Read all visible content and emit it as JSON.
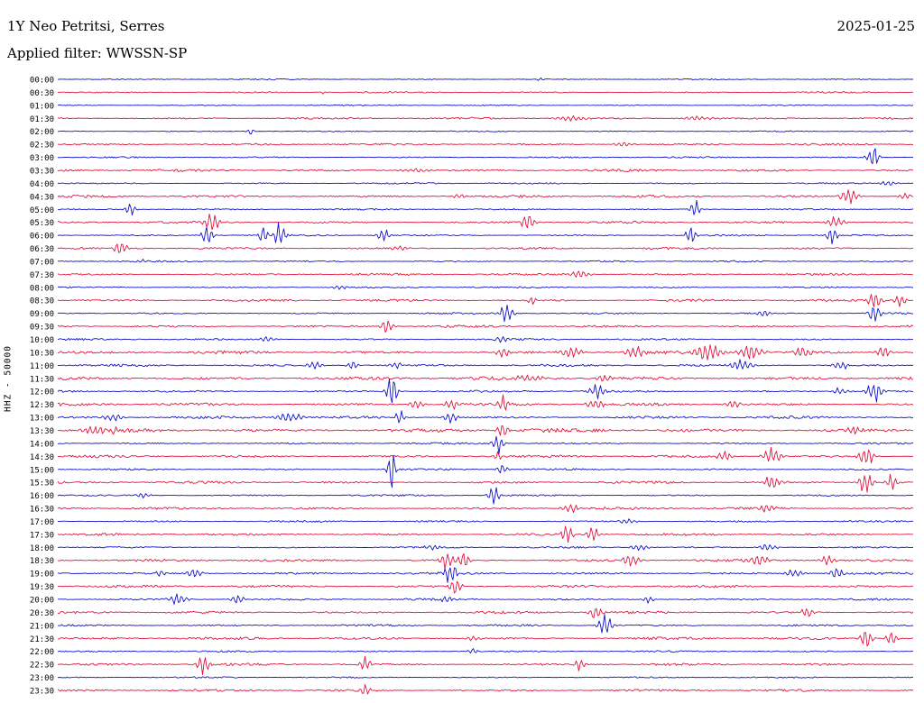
{
  "header": {
    "station": "1Y Neo Petritsi, Serres",
    "date": "2025-01-25",
    "filter": "Applied filter: WWSSN-SP"
  },
  "axis": {
    "left_label": "HHZ - 50000"
  },
  "chart_data": {
    "type": "line",
    "subtype": "seismogram-helicorder",
    "title": "1Y Neo Petritsi, Serres",
    "date": "2025-01-25",
    "filter": "WWSSN-SP",
    "channel": "HHZ",
    "scale": 50000,
    "row_interval_minutes": 30,
    "xlabel": "",
    "ylabel": "HHZ - 50000",
    "grid": false,
    "legend": false,
    "colors": {
      "even": "#1212cc",
      "odd": "#e01440"
    },
    "rows": [
      {
        "t": "00:00",
        "noise": 0.7,
        "events": [
          {
            "x": 0.565,
            "a": 3,
            "w": 0.004
          }
        ]
      },
      {
        "t": "00:30",
        "noise": 1.0,
        "events": [
          {
            "x": 0.31,
            "a": 2,
            "w": 0.003
          }
        ]
      },
      {
        "t": "01:00",
        "noise": 0.7,
        "events": []
      },
      {
        "t": "01:30",
        "noise": 1.2,
        "events": [
          {
            "x": 0.6,
            "a": 2.5,
            "w": 0.02
          },
          {
            "x": 0.75,
            "a": 2.5,
            "w": 0.02
          }
        ]
      },
      {
        "t": "02:00",
        "noise": 0.8,
        "events": [
          {
            "x": 0.225,
            "a": 4,
            "w": 0.004
          }
        ]
      },
      {
        "t": "02:30",
        "noise": 1.2,
        "events": [
          {
            "x": 0.66,
            "a": 2.5,
            "w": 0.01
          }
        ]
      },
      {
        "t": "03:00",
        "noise": 0.9,
        "events": [
          {
            "x": 0.953,
            "a": 16,
            "w": 0.006
          }
        ]
      },
      {
        "t": "03:30",
        "noise": 1.5,
        "events": [
          {
            "x": 0.42,
            "a": 2,
            "w": 0.02
          }
        ]
      },
      {
        "t": "04:00",
        "noise": 1.0,
        "events": [
          {
            "x": 0.97,
            "a": 3,
            "w": 0.01
          }
        ]
      },
      {
        "t": "04:30",
        "noise": 1.6,
        "events": [
          {
            "x": 0.47,
            "a": 3,
            "w": 0.008
          },
          {
            "x": 0.925,
            "a": 8,
            "w": 0.01
          },
          {
            "x": 0.99,
            "a": 5,
            "w": 0.006
          }
        ]
      },
      {
        "t": "05:00",
        "noise": 1.0,
        "events": [
          {
            "x": 0.085,
            "a": 6,
            "w": 0.006
          },
          {
            "x": 0.745,
            "a": 10,
            "w": 0.005
          }
        ]
      },
      {
        "t": "05:30",
        "noise": 1.4,
        "events": [
          {
            "x": 0.18,
            "a": 10,
            "w": 0.008
          },
          {
            "x": 0.55,
            "a": 9,
            "w": 0.008
          },
          {
            "x": 0.91,
            "a": 6,
            "w": 0.01
          }
        ]
      },
      {
        "t": "06:00",
        "noise": 1.0,
        "events": [
          {
            "x": 0.175,
            "a": 12,
            "w": 0.006
          },
          {
            "x": 0.24,
            "a": 10,
            "w": 0.005
          },
          {
            "x": 0.26,
            "a": 14,
            "w": 0.006
          },
          {
            "x": 0.38,
            "a": 9,
            "w": 0.006
          },
          {
            "x": 0.74,
            "a": 12,
            "w": 0.005
          },
          {
            "x": 0.905,
            "a": 10,
            "w": 0.006
          }
        ]
      },
      {
        "t": "06:30",
        "noise": 1.4,
        "events": [
          {
            "x": 0.073,
            "a": 10,
            "w": 0.007
          },
          {
            "x": 0.4,
            "a": 2.5,
            "w": 0.01
          }
        ]
      },
      {
        "t": "07:00",
        "noise": 1.0,
        "events": [
          {
            "x": 0.1,
            "a": 2,
            "w": 0.01
          }
        ]
      },
      {
        "t": "07:30",
        "noise": 1.4,
        "events": [
          {
            "x": 0.61,
            "a": 4,
            "w": 0.012
          }
        ]
      },
      {
        "t": "08:00",
        "noise": 1.0,
        "events": [
          {
            "x": 0.33,
            "a": 2,
            "w": 0.01
          }
        ]
      },
      {
        "t": "08:30",
        "noise": 1.4,
        "events": [
          {
            "x": 0.555,
            "a": 5,
            "w": 0.005
          },
          {
            "x": 0.955,
            "a": 10,
            "w": 0.008
          },
          {
            "x": 0.985,
            "a": 8,
            "w": 0.006
          }
        ]
      },
      {
        "t": "09:00",
        "noise": 1.1,
        "events": [
          {
            "x": 0.525,
            "a": 13,
            "w": 0.007
          },
          {
            "x": 0.825,
            "a": 3,
            "w": 0.01
          },
          {
            "x": 0.955,
            "a": 12,
            "w": 0.006
          }
        ]
      },
      {
        "t": "09:30",
        "noise": 1.5,
        "events": [
          {
            "x": 0.385,
            "a": 9,
            "w": 0.006
          }
        ]
      },
      {
        "t": "10:00",
        "noise": 1.2,
        "events": [
          {
            "x": 0.245,
            "a": 3,
            "w": 0.01
          },
          {
            "x": 0.52,
            "a": 4,
            "w": 0.008
          }
        ]
      },
      {
        "t": "10:30",
        "noise": 1.8,
        "events": [
          {
            "x": 0.52,
            "a": 5,
            "w": 0.01
          },
          {
            "x": 0.6,
            "a": 6,
            "w": 0.012
          },
          {
            "x": 0.675,
            "a": 7,
            "w": 0.01
          },
          {
            "x": 0.76,
            "a": 10,
            "w": 0.015
          },
          {
            "x": 0.81,
            "a": 9,
            "w": 0.012
          },
          {
            "x": 0.87,
            "a": 6,
            "w": 0.01
          },
          {
            "x": 0.965,
            "a": 7,
            "w": 0.008
          }
        ]
      },
      {
        "t": "11:00",
        "noise": 1.4,
        "events": [
          {
            "x": 0.3,
            "a": 5,
            "w": 0.008
          },
          {
            "x": 0.345,
            "a": 4,
            "w": 0.006
          },
          {
            "x": 0.395,
            "a": 4,
            "w": 0.006
          },
          {
            "x": 0.8,
            "a": 7,
            "w": 0.012
          },
          {
            "x": 0.915,
            "a": 6,
            "w": 0.008
          }
        ]
      },
      {
        "t": "11:30",
        "noise": 2.2,
        "events": [
          {
            "x": 0.55,
            "a": 3,
            "w": 0.02
          },
          {
            "x": 0.64,
            "a": 4,
            "w": 0.01
          }
        ]
      },
      {
        "t": "12:00",
        "noise": 1.3,
        "events": [
          {
            "x": 0.39,
            "a": 22,
            "w": 0.006
          },
          {
            "x": 0.63,
            "a": 8,
            "w": 0.008
          },
          {
            "x": 0.915,
            "a": 4,
            "w": 0.01
          },
          {
            "x": 0.955,
            "a": 14,
            "w": 0.009
          }
        ]
      },
      {
        "t": "12:30",
        "noise": 1.8,
        "events": [
          {
            "x": 0.42,
            "a": 6,
            "w": 0.008
          },
          {
            "x": 0.46,
            "a": 7,
            "w": 0.008
          },
          {
            "x": 0.52,
            "a": 10,
            "w": 0.006
          },
          {
            "x": 0.63,
            "a": 5,
            "w": 0.01
          },
          {
            "x": 0.79,
            "a": 4,
            "w": 0.01
          }
        ]
      },
      {
        "t": "13:00",
        "noise": 1.6,
        "events": [
          {
            "x": 0.065,
            "a": 4,
            "w": 0.01
          },
          {
            "x": 0.27,
            "a": 6,
            "w": 0.015
          },
          {
            "x": 0.4,
            "a": 8,
            "w": 0.006
          },
          {
            "x": 0.46,
            "a": 6,
            "w": 0.008
          }
        ]
      },
      {
        "t": "13:30",
        "noise": 2.5,
        "events": [
          {
            "x": 0.05,
            "a": 4,
            "w": 0.02
          },
          {
            "x": 0.52,
            "a": 8,
            "w": 0.006
          },
          {
            "x": 0.93,
            "a": 4,
            "w": 0.01
          }
        ]
      },
      {
        "t": "14:00",
        "noise": 1.2,
        "events": [
          {
            "x": 0.515,
            "a": 12,
            "w": 0.006
          }
        ]
      },
      {
        "t": "14:30",
        "noise": 1.6,
        "events": [
          {
            "x": 0.515,
            "a": 6,
            "w": 0.005
          },
          {
            "x": 0.78,
            "a": 6,
            "w": 0.008
          },
          {
            "x": 0.835,
            "a": 9,
            "w": 0.01
          },
          {
            "x": 0.945,
            "a": 12,
            "w": 0.008
          }
        ]
      },
      {
        "t": "15:00",
        "noise": 1.1,
        "events": [
          {
            "x": 0.39,
            "a": 28,
            "w": 0.004
          },
          {
            "x": 0.52,
            "a": 6,
            "w": 0.006
          }
        ]
      },
      {
        "t": "15:30",
        "noise": 1.5,
        "events": [
          {
            "x": 0.835,
            "a": 8,
            "w": 0.008
          },
          {
            "x": 0.945,
            "a": 16,
            "w": 0.007
          },
          {
            "x": 0.975,
            "a": 10,
            "w": 0.006
          }
        ]
      },
      {
        "t": "16:00",
        "noise": 1.1,
        "events": [
          {
            "x": 0.1,
            "a": 3,
            "w": 0.008
          },
          {
            "x": 0.51,
            "a": 10,
            "w": 0.006
          }
        ]
      },
      {
        "t": "16:30",
        "noise": 1.5,
        "events": [
          {
            "x": 0.6,
            "a": 5,
            "w": 0.01
          },
          {
            "x": 0.83,
            "a": 4,
            "w": 0.01
          }
        ]
      },
      {
        "t": "17:00",
        "noise": 1.1,
        "events": [
          {
            "x": 0.665,
            "a": 3,
            "w": 0.01
          }
        ]
      },
      {
        "t": "17:30",
        "noise": 1.5,
        "events": [
          {
            "x": 0.595,
            "a": 12,
            "w": 0.006
          },
          {
            "x": 0.625,
            "a": 10,
            "w": 0.006
          }
        ]
      },
      {
        "t": "18:00",
        "noise": 1.1,
        "events": [
          {
            "x": 0.44,
            "a": 3,
            "w": 0.01
          },
          {
            "x": 0.68,
            "a": 4,
            "w": 0.01
          },
          {
            "x": 0.83,
            "a": 4,
            "w": 0.01
          }
        ]
      },
      {
        "t": "18:30",
        "noise": 1.6,
        "events": [
          {
            "x": 0.455,
            "a": 12,
            "w": 0.007
          },
          {
            "x": 0.475,
            "a": 10,
            "w": 0.006
          },
          {
            "x": 0.67,
            "a": 6,
            "w": 0.01
          },
          {
            "x": 0.82,
            "a": 6,
            "w": 0.01
          },
          {
            "x": 0.9,
            "a": 5,
            "w": 0.008
          }
        ]
      },
      {
        "t": "19:00",
        "noise": 1.5,
        "events": [
          {
            "x": 0.12,
            "a": 4,
            "w": 0.006
          },
          {
            "x": 0.16,
            "a": 6,
            "w": 0.008
          },
          {
            "x": 0.46,
            "a": 14,
            "w": 0.007
          },
          {
            "x": 0.86,
            "a": 5,
            "w": 0.01
          },
          {
            "x": 0.91,
            "a": 6,
            "w": 0.008
          }
        ]
      },
      {
        "t": "19:30",
        "noise": 1.6,
        "events": [
          {
            "x": 0.465,
            "a": 12,
            "w": 0.006
          }
        ]
      },
      {
        "t": "20:00",
        "noise": 1.3,
        "events": [
          {
            "x": 0.14,
            "a": 6,
            "w": 0.01
          },
          {
            "x": 0.21,
            "a": 5,
            "w": 0.008
          },
          {
            "x": 0.455,
            "a": 4,
            "w": 0.006
          },
          {
            "x": 0.69,
            "a": 4,
            "w": 0.006
          }
        ]
      },
      {
        "t": "20:30",
        "noise": 1.6,
        "events": [
          {
            "x": 0.63,
            "a": 8,
            "w": 0.008
          },
          {
            "x": 0.875,
            "a": 6,
            "w": 0.008
          }
        ]
      },
      {
        "t": "21:00",
        "noise": 1.3,
        "events": [
          {
            "x": 0.64,
            "a": 12,
            "w": 0.008
          }
        ]
      },
      {
        "t": "21:30",
        "noise": 1.6,
        "events": [
          {
            "x": 0.485,
            "a": 3,
            "w": 0.008
          },
          {
            "x": 0.945,
            "a": 12,
            "w": 0.007
          },
          {
            "x": 0.975,
            "a": 8,
            "w": 0.006
          }
        ]
      },
      {
        "t": "22:00",
        "noise": 1.0,
        "events": [
          {
            "x": 0.485,
            "a": 3,
            "w": 0.006
          }
        ]
      },
      {
        "t": "22:30",
        "noise": 1.5,
        "events": [
          {
            "x": 0.17,
            "a": 10,
            "w": 0.007
          },
          {
            "x": 0.36,
            "a": 8,
            "w": 0.006
          },
          {
            "x": 0.61,
            "a": 8,
            "w": 0.006
          }
        ]
      },
      {
        "t": "23:00",
        "noise": 0.9,
        "events": []
      },
      {
        "t": "23:30",
        "noise": 1.4,
        "events": [
          {
            "x": 0.36,
            "a": 6,
            "w": 0.006
          }
        ]
      }
    ]
  }
}
